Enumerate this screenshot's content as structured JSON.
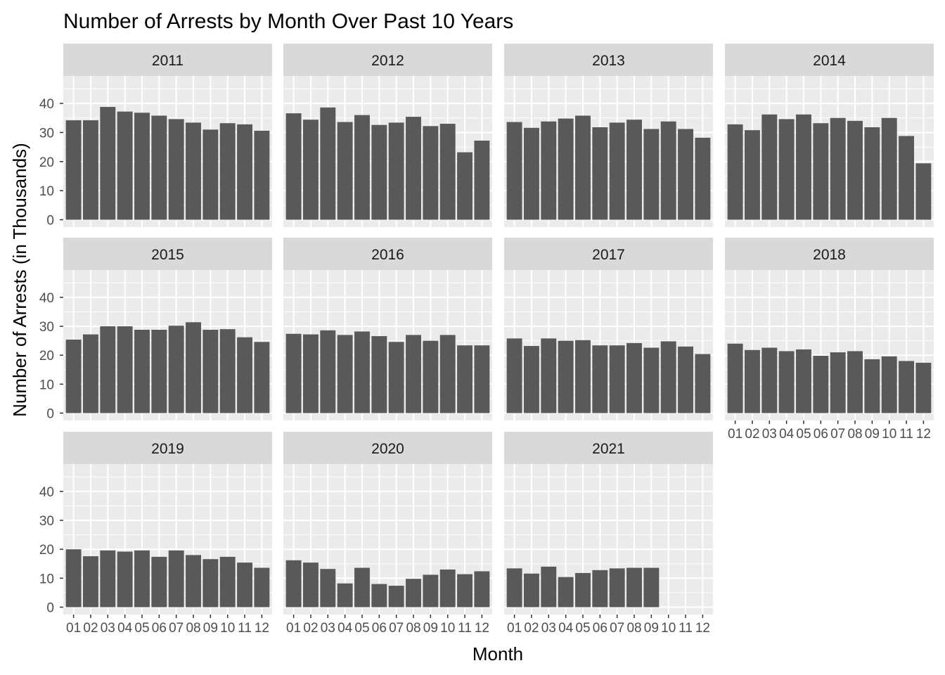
{
  "chart_data": {
    "type": "bar",
    "title": "Number of Arrests by Month Over Past 10 Years",
    "xlabel": "Month",
    "ylabel": "Number of Arrests (in Thousands)",
    "ylim": [
      0,
      48
    ],
    "yticks": [
      0,
      10,
      20,
      30,
      40
    ],
    "categories": [
      "01",
      "02",
      "03",
      "04",
      "05",
      "06",
      "07",
      "08",
      "09",
      "10",
      "11",
      "12"
    ],
    "grid": true,
    "colors": {
      "bar": "#595959",
      "panel": "#ebebeb",
      "strip": "#d9d9d9",
      "grid": "#ffffff"
    },
    "facets": [
      {
        "label": "2011",
        "values": [
          34.2,
          34.2,
          38.8,
          37.2,
          36.8,
          35.8,
          34.6,
          33.4,
          31.0,
          33.2,
          32.8,
          30.6
        ]
      },
      {
        "label": "2012",
        "values": [
          36.6,
          34.4,
          38.6,
          33.6,
          36.0,
          32.6,
          33.4,
          35.4,
          32.2,
          33.0,
          23.2,
          27.2
        ]
      },
      {
        "label": "2013",
        "values": [
          33.6,
          31.6,
          33.8,
          34.8,
          35.8,
          31.8,
          33.4,
          34.4,
          31.2,
          33.8,
          31.2,
          28.2
        ]
      },
      {
        "label": "2014",
        "values": [
          32.8,
          30.8,
          36.2,
          34.6,
          36.2,
          33.2,
          35.0,
          34.0,
          31.8,
          35.0,
          28.8,
          19.4
        ]
      },
      {
        "label": "2015",
        "values": [
          25.4,
          27.2,
          30.0,
          30.0,
          28.8,
          28.8,
          30.2,
          31.4,
          28.8,
          29.0,
          26.2,
          24.6
        ]
      },
      {
        "label": "2016",
        "values": [
          27.4,
          27.2,
          28.6,
          27.0,
          28.2,
          26.6,
          24.6,
          27.0,
          25.0,
          27.0,
          23.4,
          23.4
        ]
      },
      {
        "label": "2017",
        "values": [
          25.8,
          23.2,
          25.8,
          25.0,
          25.2,
          23.4,
          23.4,
          24.2,
          22.6,
          24.8,
          23.0,
          20.4
        ]
      },
      {
        "label": "2018",
        "values": [
          24.0,
          21.8,
          22.6,
          21.4,
          22.0,
          19.8,
          21.0,
          21.4,
          18.6,
          19.6,
          18.0,
          17.4
        ]
      },
      {
        "label": "2019",
        "values": [
          20.0,
          17.6,
          19.6,
          19.2,
          19.6,
          17.4,
          19.6,
          18.0,
          16.6,
          17.4,
          15.4,
          13.6
        ]
      },
      {
        "label": "2020",
        "values": [
          16.2,
          15.4,
          13.2,
          8.2,
          13.6,
          8.0,
          7.4,
          9.8,
          11.2,
          13.0,
          11.4,
          12.4
        ]
      },
      {
        "label": "2021",
        "values": [
          13.4,
          11.6,
          14.0,
          10.4,
          11.8,
          12.8,
          13.4,
          13.6,
          13.6,
          null,
          null,
          null
        ]
      }
    ],
    "facet_layout": {
      "columns": 4,
      "rows": 3
    }
  }
}
